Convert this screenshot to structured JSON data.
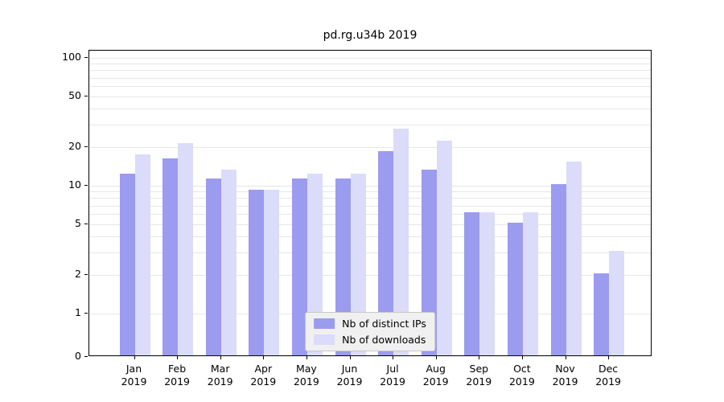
{
  "chart_data": {
    "type": "bar",
    "title": "pd.rg.u34b 2019",
    "xlabel": "",
    "ylabel": "",
    "y_scale": "log-with-zero-baseline",
    "ylim": [
      0,
      100
    ],
    "grid": true,
    "legend_position": "lower center",
    "x_tick_year": "2019",
    "x_tick_months": [
      "Jan",
      "Feb",
      "Mar",
      "Apr",
      "May",
      "Jun",
      "Jul",
      "Aug",
      "Sep",
      "Oct",
      "Nov",
      "Dec"
    ],
    "y_tick_labels": [
      100,
      50,
      20,
      10,
      5,
      2,
      1,
      0
    ],
    "y_gridlines": [
      1,
      2,
      3,
      4,
      5,
      6,
      7,
      8,
      9,
      10,
      20,
      30,
      40,
      50,
      60,
      70,
      80,
      90,
      100
    ],
    "series": [
      {
        "name": "Nb of distinct IPs",
        "color": "#9b9bef",
        "values": [
          12,
          16,
          11,
          9,
          11,
          11,
          18,
          13,
          6,
          5,
          10,
          2
        ]
      },
      {
        "name": "Nb of downloads",
        "color": "#dbdbfa",
        "values": [
          17,
          21,
          13,
          9,
          12,
          12,
          27,
          22,
          6,
          6,
          15,
          3
        ]
      }
    ]
  },
  "colors": {
    "axis": "#000000",
    "grid": "#e6e6e6",
    "legend_background": "#f0f0f0",
    "legend_border": "#c8c8c8"
  }
}
